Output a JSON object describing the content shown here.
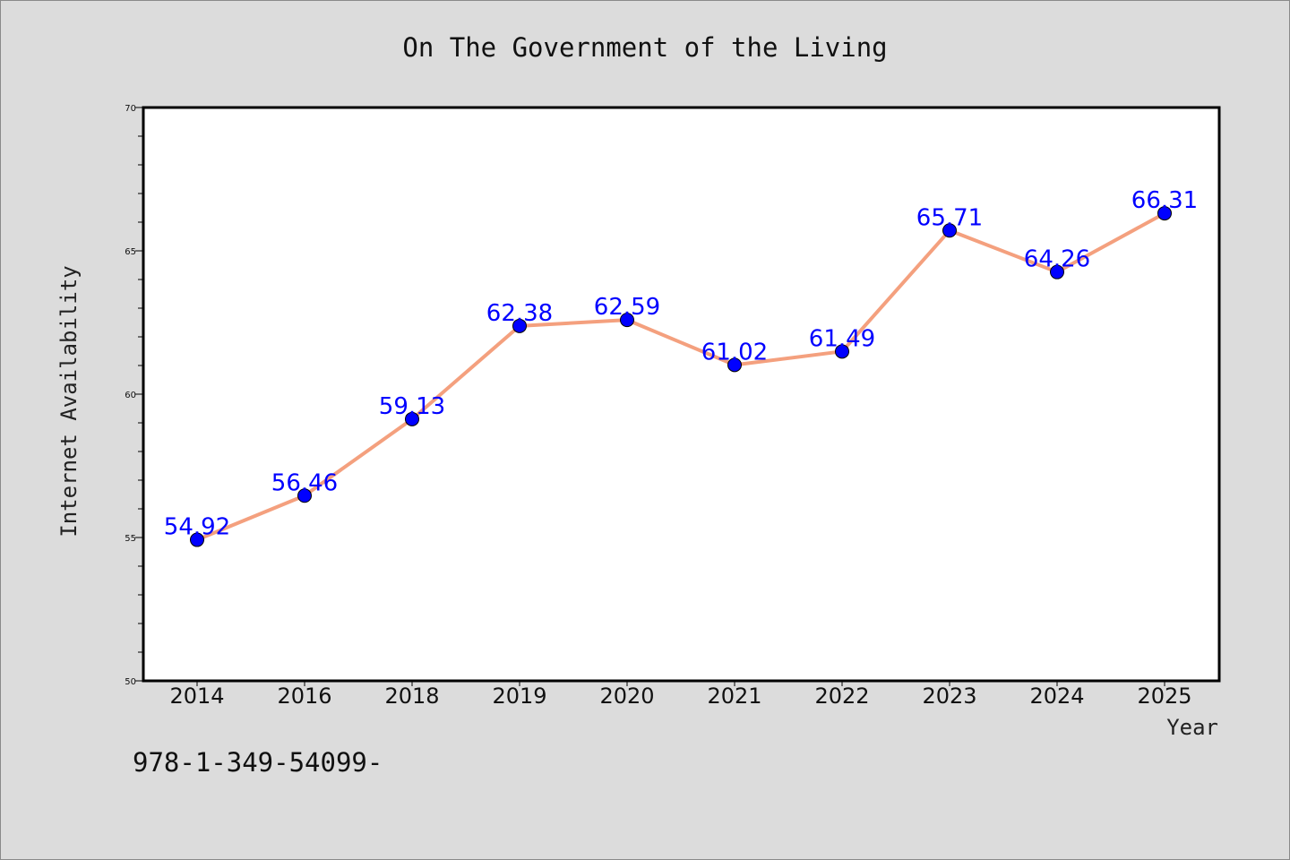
{
  "chart_data": {
    "type": "line",
    "title": "On The Government of the Living",
    "xlabel": "Year",
    "ylabel": "Internet Availability",
    "categories": [
      "2014",
      "2016",
      "2018",
      "2019",
      "2020",
      "2021",
      "2022",
      "2023",
      "2024",
      "2025"
    ],
    "series": [
      {
        "values": [
          54.92,
          56.46,
          59.13,
          62.38,
          62.59,
          61.02,
          61.49,
          65.71,
          64.26,
          66.31
        ],
        "data_labels": [
          "54.92",
          "56.46",
          "59.13",
          "62.38",
          "62.59",
          "61.02",
          "61.49",
          "65.71",
          "64.26",
          "66.31"
        ],
        "line_color": "#f4a07e",
        "marker_color": "#0000ff"
      }
    ],
    "ylim": [
      50,
      70
    ],
    "y_ticks": [
      "50",
      "55",
      "60",
      "65",
      "70"
    ],
    "grid": false,
    "legend": "none"
  },
  "footer": {
    "text": "978-1-349-54099-"
  },
  "colors": {
    "background": "#dcdcdc",
    "plot_background": "#ffffff",
    "line": "#f4a07e",
    "marker": "#0000ff",
    "data_label": "#0000ff"
  }
}
